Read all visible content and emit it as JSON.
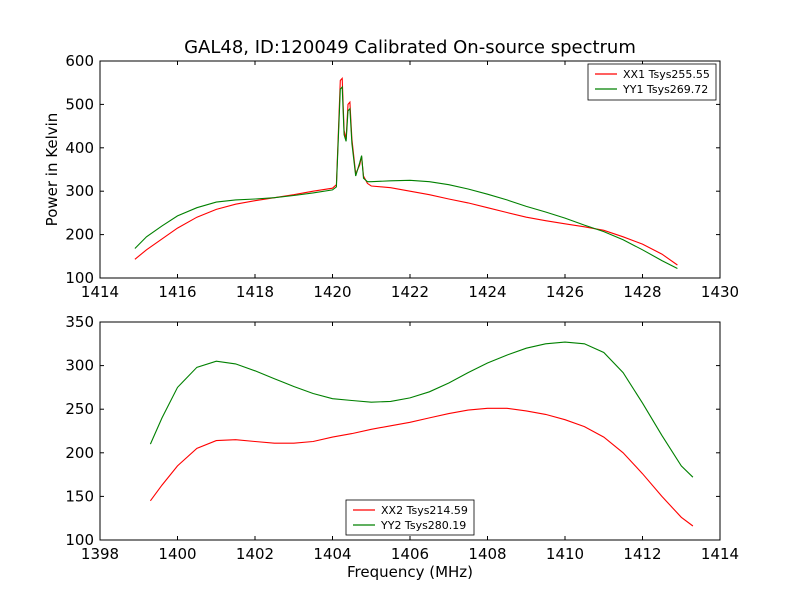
{
  "figure_title": "GAL48, ID:120049 Calibrated On-source spectrum",
  "chart_data": [
    {
      "type": "line",
      "title": "GAL48, ID:120049 Calibrated On-source spectrum",
      "xlabel": "",
      "ylabel": "Power in Kelvin",
      "xlim": [
        1414,
        1430
      ],
      "ylim": [
        100,
        600
      ],
      "xticks": [
        1414,
        1416,
        1418,
        1420,
        1422,
        1424,
        1426,
        1428,
        1430
      ],
      "yticks": [
        100,
        200,
        300,
        400,
        500,
        600
      ],
      "grid": false,
      "legend_position": "top-right",
      "series": [
        {
          "name": "XX1 Tsys255.55",
          "color": "#ff0000",
          "x": [
            1414.9,
            1415.2,
            1415.6,
            1416.0,
            1416.5,
            1417.0,
            1417.5,
            1418.0,
            1418.5,
            1419.0,
            1419.5,
            1420.0,
            1420.1,
            1420.2,
            1420.25,
            1420.3,
            1420.35,
            1420.4,
            1420.45,
            1420.5,
            1420.6,
            1420.7,
            1420.75,
            1420.8,
            1420.9,
            1421.0,
            1421.5,
            1422.0,
            1422.5,
            1423.0,
            1423.5,
            1424.0,
            1424.5,
            1425.0,
            1425.5,
            1426.0,
            1426.5,
            1427.0,
            1427.5,
            1428.0,
            1428.5,
            1428.9
          ],
          "y": [
            143,
            165,
            190,
            215,
            240,
            258,
            270,
            278,
            285,
            292,
            300,
            307,
            315,
            555,
            560,
            440,
            420,
            500,
            505,
            420,
            340,
            360,
            380,
            335,
            318,
            312,
            308,
            300,
            292,
            282,
            273,
            262,
            251,
            240,
            232,
            225,
            218,
            210,
            195,
            178,
            155,
            130
          ]
        },
        {
          "name": "YY1 Tsys269.72",
          "color": "#008000",
          "x": [
            1414.9,
            1415.2,
            1415.6,
            1416.0,
            1416.5,
            1417.0,
            1417.5,
            1418.0,
            1418.5,
            1419.0,
            1419.5,
            1420.0,
            1420.1,
            1420.2,
            1420.25,
            1420.3,
            1420.35,
            1420.4,
            1420.45,
            1420.5,
            1420.6,
            1420.7,
            1420.75,
            1420.8,
            1420.9,
            1421.0,
            1421.5,
            1422.0,
            1422.5,
            1423.0,
            1423.5,
            1424.0,
            1424.5,
            1425.0,
            1425.5,
            1426.0,
            1426.5,
            1427.0,
            1427.5,
            1428.0,
            1428.5,
            1428.9
          ],
          "y": [
            168,
            195,
            220,
            243,
            262,
            275,
            280,
            282,
            285,
            290,
            296,
            303,
            310,
            535,
            540,
            430,
            415,
            485,
            490,
            410,
            335,
            365,
            382,
            330,
            322,
            322,
            324,
            325,
            322,
            315,
            305,
            293,
            280,
            265,
            252,
            238,
            222,
            207,
            188,
            165,
            140,
            122
          ]
        }
      ]
    },
    {
      "type": "line",
      "title": "",
      "xlabel": "Frequency (MHz)",
      "ylabel": "",
      "xlim": [
        1398,
        1414
      ],
      "ylim": [
        100,
        350
      ],
      "xticks": [
        1398,
        1400,
        1402,
        1404,
        1406,
        1408,
        1410,
        1412,
        1414
      ],
      "yticks": [
        100,
        150,
        200,
        250,
        300,
        350
      ],
      "grid": false,
      "legend_position": "bottom-center",
      "series": [
        {
          "name": "XX2 Tsys214.59",
          "color": "#ff0000",
          "x": [
            1399.3,
            1399.6,
            1400.0,
            1400.5,
            1401.0,
            1401.5,
            1402.0,
            1402.5,
            1403.0,
            1403.5,
            1404.0,
            1404.5,
            1405.0,
            1405.5,
            1406.0,
            1406.5,
            1407.0,
            1407.5,
            1408.0,
            1408.5,
            1409.0,
            1409.5,
            1410.0,
            1410.5,
            1411.0,
            1411.5,
            1412.0,
            1412.5,
            1413.0,
            1413.3
          ],
          "y": [
            145,
            163,
            185,
            205,
            214,
            215,
            213,
            211,
            211,
            213,
            218,
            222,
            227,
            231,
            235,
            240,
            245,
            249,
            251,
            251,
            248,
            244,
            238,
            230,
            218,
            200,
            176,
            150,
            126,
            116
          ]
        },
        {
          "name": "YY2 Tsys280.19",
          "color": "#008000",
          "x": [
            1399.3,
            1399.6,
            1400.0,
            1400.5,
            1401.0,
            1401.5,
            1402.0,
            1402.5,
            1403.0,
            1403.5,
            1404.0,
            1404.5,
            1405.0,
            1405.5,
            1406.0,
            1406.5,
            1407.0,
            1407.5,
            1408.0,
            1408.5,
            1409.0,
            1409.5,
            1410.0,
            1410.5,
            1411.0,
            1411.5,
            1412.0,
            1412.5,
            1413.0,
            1413.3
          ],
          "y": [
            210,
            240,
            275,
            298,
            305,
            302,
            294,
            285,
            276,
            268,
            262,
            260,
            258,
            259,
            263,
            270,
            280,
            292,
            303,
            312,
            320,
            325,
            327,
            325,
            315,
            292,
            257,
            220,
            185,
            172
          ]
        }
      ]
    }
  ]
}
